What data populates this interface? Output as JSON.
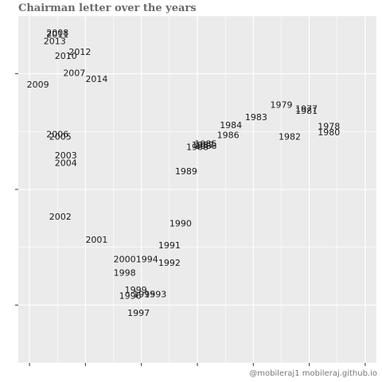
{
  "title": "Chairman letter over the years",
  "caption": "@mobileraj1   mobileraj.github.io",
  "colors": {
    "panel_background": "#ebebeb",
    "gridline": "#ffffff",
    "text": "#1a1a1a",
    "title": "#6b6b6b",
    "caption": "#777777"
  },
  "chart_data": {
    "type": "scatter",
    "title": "Chairman letter over the years",
    "xlabel": "",
    "ylabel": "",
    "x_tick_labels": [],
    "y_tick_labels": [],
    "xlim": [
      -3.2,
      3.2
    ],
    "ylim": [
      -3.0,
      3.0
    ],
    "grid": true,
    "legend": "none",
    "points": [
      {
        "label": "2008",
        "x": -2.5,
        "y": 2.7
      },
      {
        "label": "2011",
        "x": -2.5,
        "y": 2.67
      },
      {
        "label": "2013",
        "x": -2.55,
        "y": 2.55
      },
      {
        "label": "2012",
        "x": -2.1,
        "y": 2.37
      },
      {
        "label": "2010",
        "x": -2.35,
        "y": 2.3
      },
      {
        "label": "2007",
        "x": -2.2,
        "y": 2.0
      },
      {
        "label": "2014",
        "x": -1.8,
        "y": 1.9
      },
      {
        "label": "2009",
        "x": -2.85,
        "y": 1.8
      },
      {
        "label": "1979",
        "x": 1.5,
        "y": 1.45
      },
      {
        "label": "1977",
        "x": 1.95,
        "y": 1.38
      },
      {
        "label": "1981",
        "x": 1.95,
        "y": 1.35
      },
      {
        "label": "1983",
        "x": 1.05,
        "y": 1.24
      },
      {
        "label": "1984",
        "x": 0.6,
        "y": 1.1
      },
      {
        "label": "1978",
        "x": 2.35,
        "y": 1.08
      },
      {
        "label": "1980",
        "x": 2.35,
        "y": 0.98
      },
      {
        "label": "1986",
        "x": 0.55,
        "y": 0.93
      },
      {
        "label": "1982",
        "x": 1.65,
        "y": 0.9
      },
      {
        "label": "1985",
        "x": 0.15,
        "y": 0.78
      },
      {
        "label": "1987",
        "x": 0.1,
        "y": 0.76
      },
      {
        "label": "1988",
        "x": 0.0,
        "y": 0.72
      },
      {
        "label": "1988",
        "x": 0.15,
        "y": 0.74
      },
      {
        "label": "2006",
        "x": -2.5,
        "y": 0.94
      },
      {
        "label": "2005",
        "x": -2.45,
        "y": 0.9
      },
      {
        "label": "2003",
        "x": -2.35,
        "y": 0.58
      },
      {
        "label": "2004",
        "x": -2.35,
        "y": 0.45
      },
      {
        "label": "1989",
        "x": -0.2,
        "y": 0.3
      },
      {
        "label": "2002",
        "x": -2.45,
        "y": -0.48
      },
      {
        "label": "1990",
        "x": -0.3,
        "y": -0.6
      },
      {
        "label": "2001",
        "x": -1.8,
        "y": -0.88
      },
      {
        "label": "1991",
        "x": -0.5,
        "y": -0.98
      },
      {
        "label": "2000",
        "x": -1.3,
        "y": -1.22
      },
      {
        "label": "1994",
        "x": -0.9,
        "y": -1.22
      },
      {
        "label": "1992",
        "x": -0.5,
        "y": -1.28
      },
      {
        "label": "1998",
        "x": -1.3,
        "y": -1.45
      },
      {
        "label": "1999",
        "x": -1.1,
        "y": -1.75
      },
      {
        "label": "1995",
        "x": -0.95,
        "y": -1.82
      },
      {
        "label": "1996",
        "x": -1.2,
        "y": -1.85
      },
      {
        "label": "1993",
        "x": -0.75,
        "y": -1.82
      },
      {
        "label": "1997",
        "x": -1.05,
        "y": -2.15
      }
    ]
  }
}
